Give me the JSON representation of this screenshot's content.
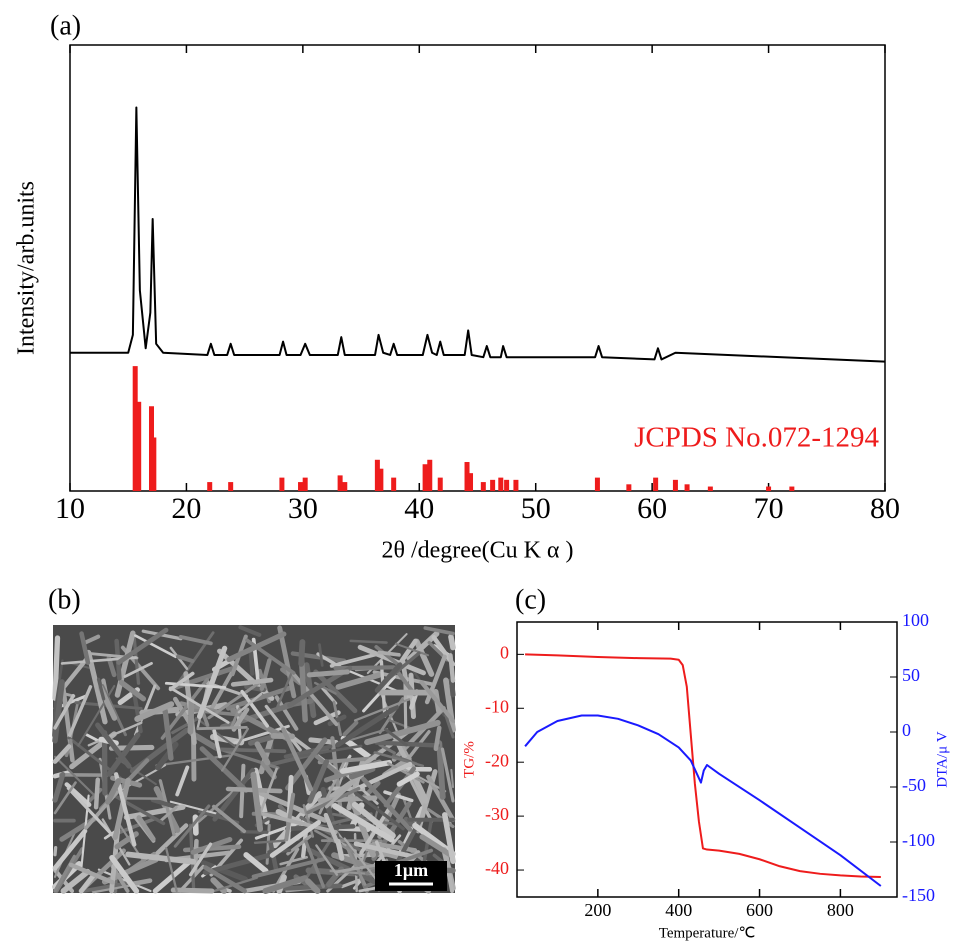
{
  "chart_data": [
    {
      "type": "line",
      "panel_label": "(a)",
      "xlabel": "2θ /degree(Cu K α )",
      "ylabel": "Intensity/arb.units",
      "xlim": [
        10,
        80
      ],
      "xticks": [
        10,
        20,
        30,
        40,
        50,
        60,
        70,
        80
      ],
      "ylim": [
        0,
        100
      ],
      "series": [
        {
          "type": "line",
          "color": "#000000",
          "x": [
            10,
            15,
            15.4,
            15.7,
            16.0,
            16.5,
            16.9,
            17.1,
            17.4,
            18,
            21.8,
            22.1,
            22.4,
            23.5,
            23.8,
            24.1,
            28.0,
            28.3,
            28.6,
            29.8,
            30.2,
            30.6,
            33.0,
            33.3,
            33.6,
            36.2,
            36.5,
            36.9,
            37.5,
            37.8,
            38.1,
            40.3,
            40.7,
            41.1,
            41.5,
            41.8,
            42.1,
            43.9,
            44.2,
            44.5,
            45.5,
            45.8,
            46.1,
            47.0,
            47.2,
            47.5,
            55.1,
            55.4,
            55.7,
            60.2,
            60.5,
            60.8,
            62.0,
            80
          ],
          "values": [
            31,
            31,
            35,
            86,
            45,
            32,
            40,
            61,
            33,
            31,
            30.5,
            33,
            30.5,
            30.5,
            33,
            30.5,
            30.5,
            33.5,
            30.5,
            30.5,
            33,
            30.5,
            30.5,
            34.5,
            30.5,
            30.5,
            35,
            31,
            30.5,
            33,
            30.5,
            30.5,
            35,
            31,
            30.5,
            33.5,
            30.5,
            30.5,
            36,
            30.5,
            30,
            32.5,
            30,
            30,
            32.5,
            30,
            30,
            32.5,
            30,
            29.5,
            32,
            29.5,
            31,
            29
          ]
        },
        {
          "type": "stick",
          "name": "JCPDS No.072-1294",
          "color": "#ee1c1c",
          "x": [
            15.6,
            15.9,
            17.0,
            17.2,
            22.0,
            23.8,
            28.2,
            29.8,
            30.2,
            33.2,
            33.6,
            36.4,
            36.7,
            37.8,
            40.5,
            40.9,
            41.8,
            44.1,
            44.4,
            45.5,
            46.3,
            47.0,
            47.5,
            48.3,
            55.3,
            58.0,
            60.3,
            62.0,
            63.0,
            65,
            70,
            72
          ],
          "values": [
            28,
            20,
            19,
            12,
            2,
            2,
            3,
            2,
            3,
            3.5,
            2,
            7,
            5,
            3,
            6,
            7,
            3,
            6.5,
            4,
            2,
            2.5,
            3,
            2.5,
            2.5,
            3,
            1.5,
            3,
            2.5,
            1.5,
            1,
            1,
            1
          ]
        }
      ]
    },
    {
      "type": "line",
      "panel_label": "(c)",
      "xlabel": "Temperature/℃",
      "ylabel": "TG/%",
      "y2label": "DTA/μ V",
      "xlim": [
        0,
        940
      ],
      "xticks": [
        200,
        400,
        600,
        800
      ],
      "ylim": [
        -45,
        6
      ],
      "yticks": [
        0,
        -10,
        -20,
        -30,
        -40
      ],
      "y2lim": [
        -150,
        100
      ],
      "y2ticks": [
        100,
        50,
        0,
        -50,
        -100,
        -150
      ],
      "series": [
        {
          "type": "line",
          "color": "#ee1c1c",
          "axis": "y",
          "x": [
            20,
            100,
            200,
            300,
            380,
            400,
            410,
            420,
            430,
            440,
            450,
            460,
            470,
            500,
            550,
            600,
            650,
            700,
            750,
            800,
            850,
            900
          ],
          "values": [
            0,
            -0.2,
            -0.5,
            -0.7,
            -0.8,
            -1,
            -2,
            -6,
            -15,
            -24,
            -31,
            -36,
            -36.2,
            -36.4,
            -37,
            -38,
            -39.3,
            -40.2,
            -40.7,
            -41,
            -41.2,
            -41.3
          ]
        },
        {
          "type": "line",
          "color": "#1a1aff",
          "axis": "y2",
          "x": [
            20,
            50,
            100,
            160,
            200,
            250,
            300,
            350,
            400,
            430,
            445,
            455,
            462,
            470,
            500,
            600,
            700,
            800,
            900
          ],
          "values": [
            -13,
            0,
            10,
            15,
            15,
            12,
            6,
            -2,
            -14,
            -26,
            -38,
            -46,
            -35,
            -30,
            -38,
            -62,
            -87,
            -112,
            -140
          ]
        }
      ]
    }
  ],
  "image_panel": {
    "panel_label": "(b)",
    "scale_bar": "1μm"
  }
}
